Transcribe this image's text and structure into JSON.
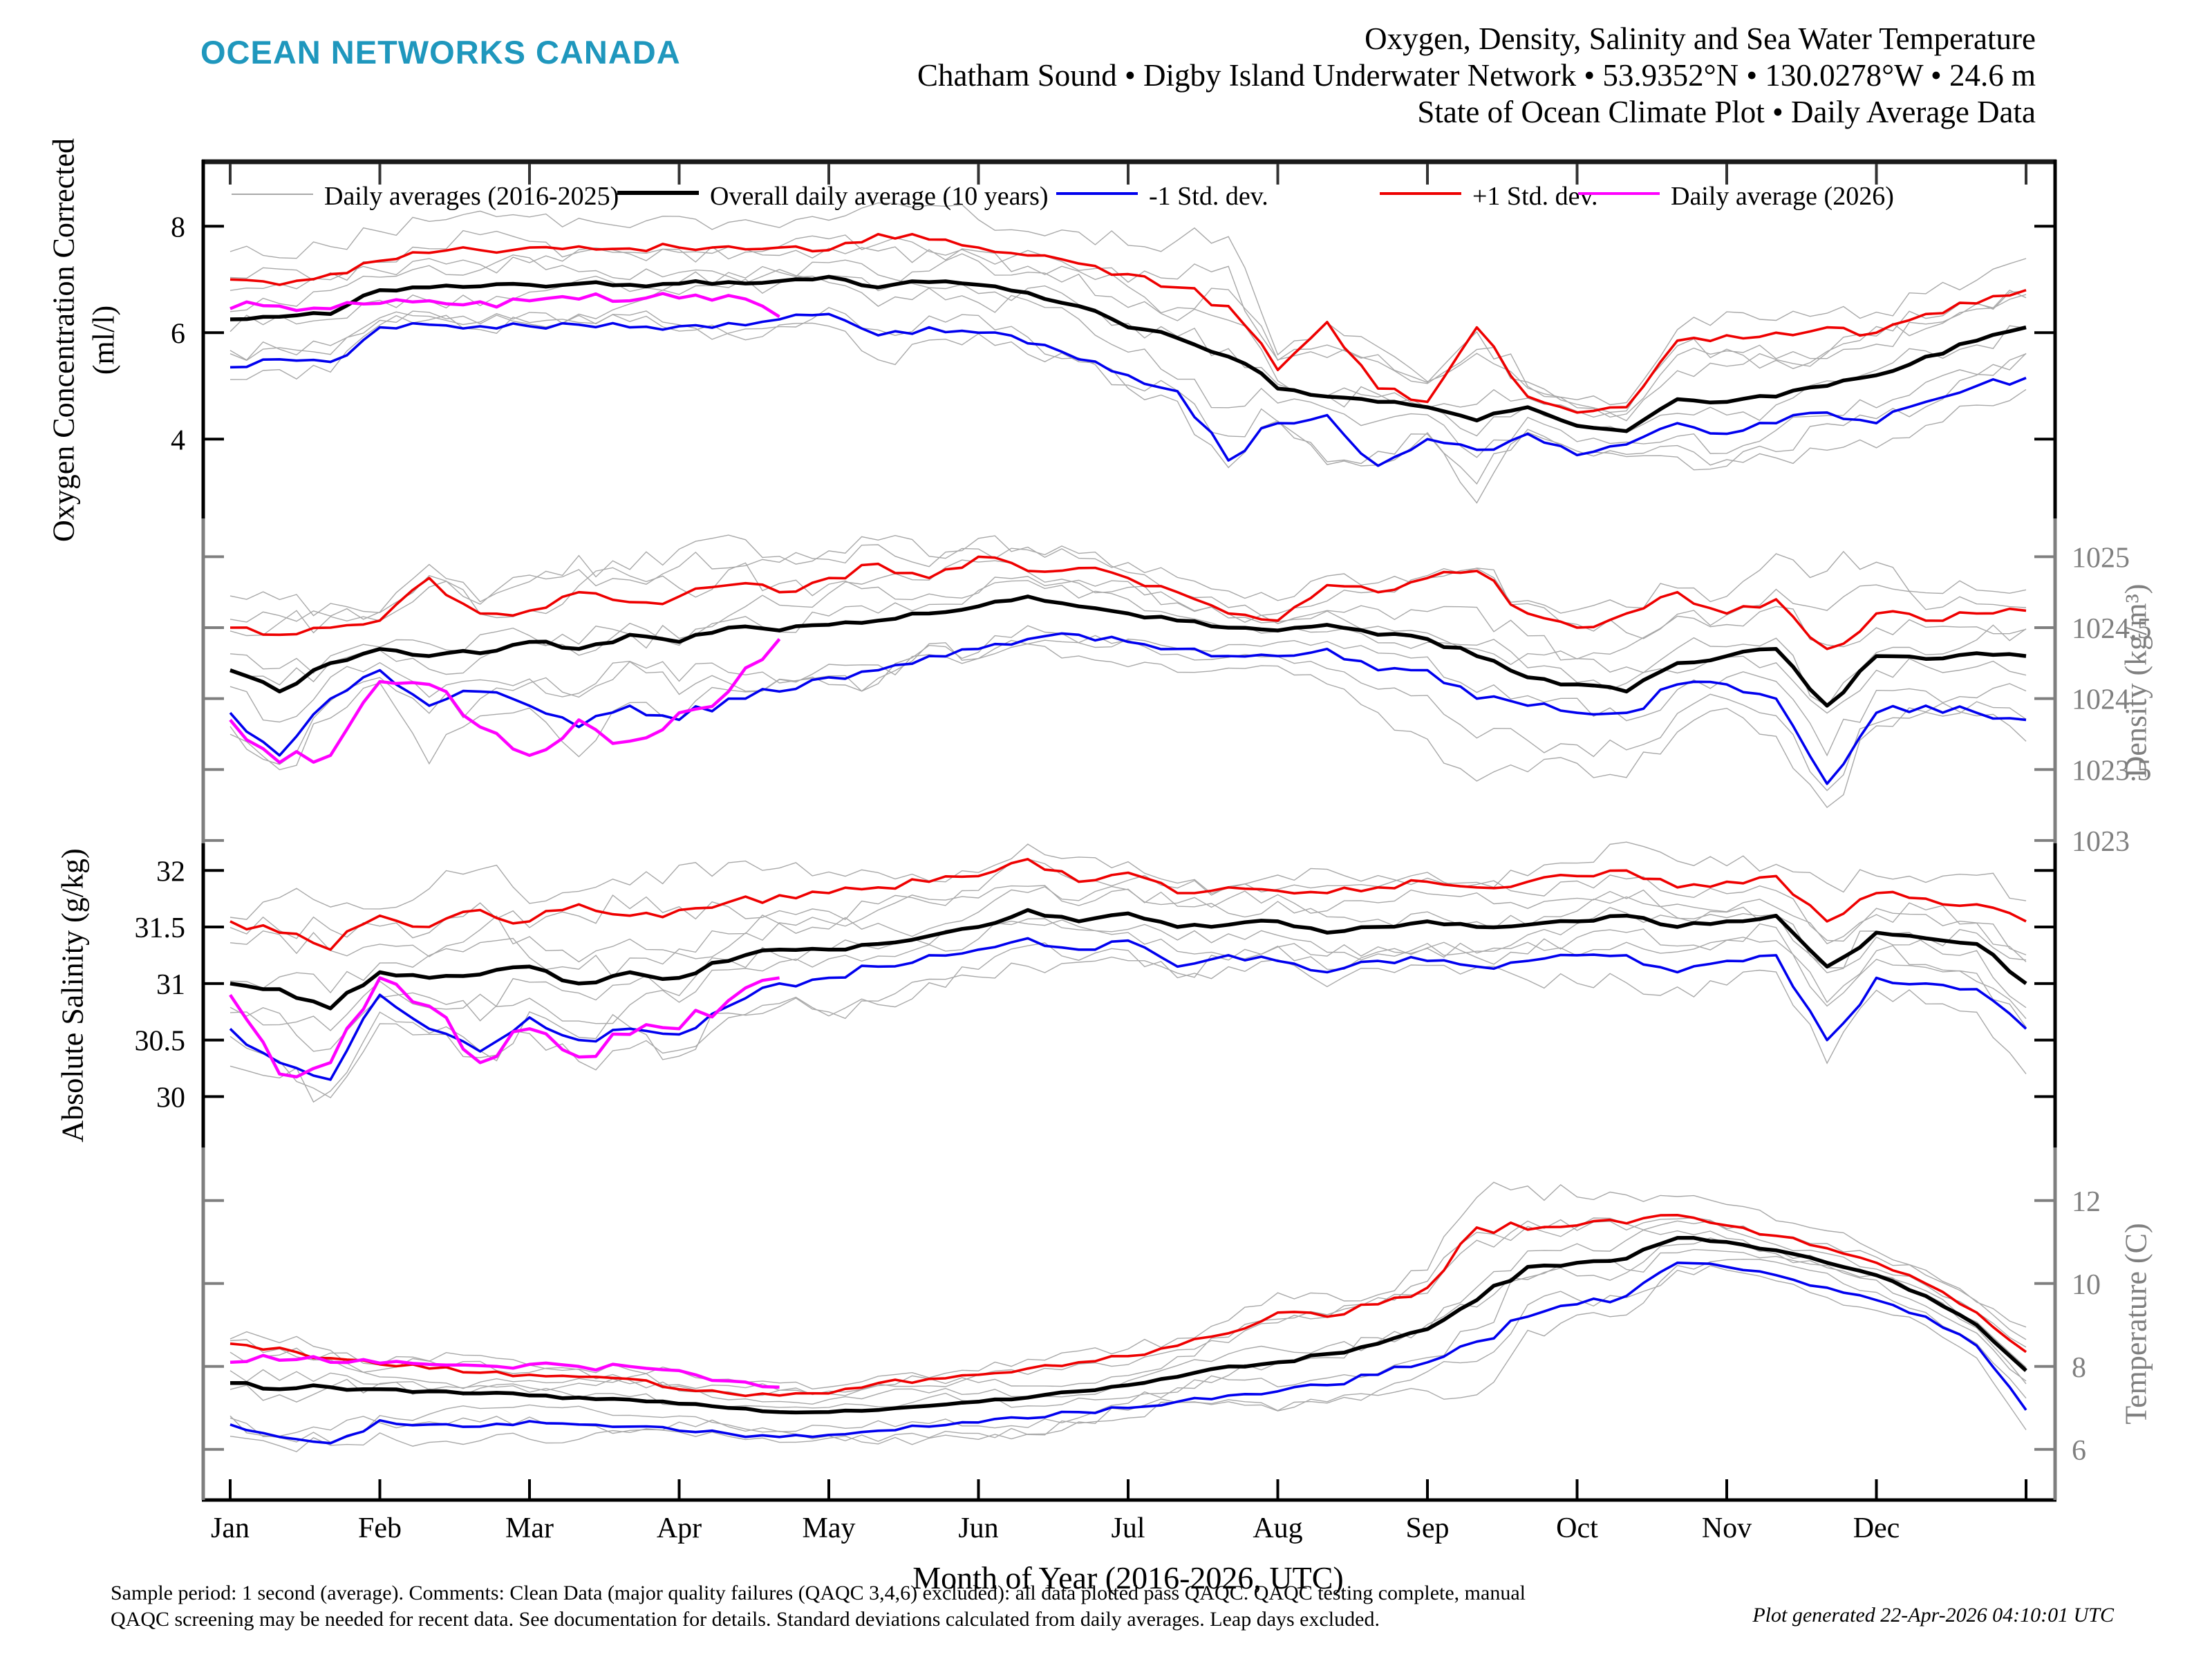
{
  "header": {
    "brand": "OCEAN NETWORKS CANADA",
    "brand_color": "#1f97bd",
    "title_lines": [
      "Oxygen, Density, Salinity and Sea Water Temperature",
      "Chatham Sound • Digby Island Underwater Network • 53.9352°N • 130.0278°W • 24.6 m",
      "State of Ocean Climate Plot • Daily Average Data"
    ]
  },
  "legend": [
    {
      "label": "Daily averages (2016-2025)",
      "color": "#a8a8a8",
      "thickness": 2
    },
    {
      "label": "Overall daily average (10 years)",
      "color": "#000000",
      "thickness": 6
    },
    {
      "label": "-1 Std. dev.",
      "color": "#0000ee",
      "thickness": 4
    },
    {
      "label": "+1 Std. dev.",
      "color": "#ee0000",
      "thickness": 4
    },
    {
      "label": "Daily average (2026)",
      "color": "#ff00ff",
      "thickness": 4
    }
  ],
  "x_axis": {
    "months": [
      "Jan",
      "Feb",
      "Mar",
      "Apr",
      "May",
      "Jun",
      "Jul",
      "Aug",
      "Sep",
      "Oct",
      "Nov",
      "Dec"
    ],
    "label": "Month of Year (2016-2026, UTC)"
  },
  "footer": {
    "line1": "Sample period: 1 second (average). Comments: Clean Data (major quality failures (QAQC 3,4,6) excluded): all data plotted pass QAQC. QAQC testing complete, manual",
    "line2": "QAQC screening may be needed for recent data. See documentation for details. Standard deviations calculated from daily averages. Leap days excluded.",
    "generated": "Plot generated 22-Apr-2026 04:10:01 UTC"
  },
  "colors": {
    "mean": "#000000",
    "plus_std": "#ee0000",
    "minus_std": "#0000ee",
    "current": "#ff00ff",
    "gray_year": "#a8a8a8",
    "axis_gray": "#7f7f7f"
  },
  "chart_data": {
    "type": "line",
    "x_unit": "month_of_year",
    "x": [
      0,
      0.33,
      0.67,
      1,
      1.33,
      1.67,
      2,
      2.33,
      2.67,
      3,
      3.33,
      3.67,
      4,
      4.33,
      4.67,
      5,
      5.33,
      5.67,
      6,
      6.33,
      6.67,
      7,
      7.33,
      7.67,
      8,
      8.33,
      8.67,
      9,
      9.33,
      9.67,
      10,
      10.33,
      10.67,
      11,
      11.33,
      11.67,
      12
    ],
    "current_x": [
      0,
      0.33,
      0.67,
      1,
      1.33,
      1.67,
      2,
      2.33,
      2.67,
      3,
      3.33,
      3.67
    ],
    "legend_series_note": "gray = individual daily-average year traces 2016-2025 (approximate); mean/std read from plot",
    "panels": [
      {
        "id": "oxygen",
        "axis_label": "Oxygen Concentration Corrected",
        "axis_label_line2": "(ml/l)",
        "axis_side": "left",
        "axis_color": "#000000",
        "ylim": [
          2.51,
          9.25
        ],
        "ticks": [
          8,
          6,
          4
        ],
        "tick_labels": [
          "8",
          "6",
          "4"
        ],
        "series": {
          "mean": [
            6.25,
            6.3,
            6.35,
            6.8,
            6.85,
            6.87,
            6.9,
            6.92,
            6.9,
            6.92,
            6.95,
            6.97,
            7.05,
            6.85,
            6.95,
            6.9,
            6.75,
            6.5,
            6.1,
            5.9,
            5.55,
            4.95,
            4.8,
            4.7,
            4.6,
            4.35,
            4.6,
            4.25,
            4.15,
            4.75,
            4.7,
            4.8,
            5.0,
            5.2,
            5.55,
            5.85,
            6.1
          ],
          "plus_std": [
            7.0,
            6.9,
            7.1,
            7.35,
            7.5,
            7.55,
            7.6,
            7.62,
            7.58,
            7.6,
            7.62,
            7.6,
            7.55,
            7.85,
            7.75,
            7.6,
            7.45,
            7.3,
            7.1,
            6.85,
            6.5,
            5.3,
            6.2,
            4.95,
            4.7,
            6.1,
            4.8,
            4.5,
            4.6,
            5.85,
            5.95,
            6.0,
            6.1,
            6.0,
            6.35,
            6.55,
            6.8
          ],
          "minus_std": [
            5.35,
            5.5,
            5.45,
            6.1,
            6.15,
            6.12,
            6.12,
            6.15,
            6.1,
            6.12,
            6.18,
            6.25,
            6.35,
            5.95,
            6.1,
            6.0,
            5.8,
            5.5,
            5.2,
            4.9,
            3.6,
            4.3,
            4.45,
            3.5,
            4.0,
            3.8,
            4.1,
            3.7,
            3.9,
            4.3,
            4.1,
            4.3,
            4.5,
            4.3,
            4.7,
            5.0,
            5.15
          ],
          "current": [
            6.45,
            6.5,
            6.45,
            6.55,
            6.6,
            6.58,
            6.6,
            6.63,
            6.6,
            6.65,
            6.7,
            6.3
          ]
        },
        "gray_years": {
          "count": 8,
          "seed": 11,
          "spread": 1.45
        }
      },
      {
        "id": "density",
        "axis_label": "Density (kg/m³)",
        "axis_side": "right",
        "axis_color": "#7f7f7f",
        "ylim": [
          1022.98,
          1025.27
        ],
        "ticks": [
          1025,
          1024.5,
          1024,
          1023.5,
          1023
        ],
        "tick_labels": [
          "1025",
          "1024.5",
          "1024",
          "1023.5",
          "1023"
        ],
        "series": {
          "mean": [
            1024.2,
            1024.05,
            1024.25,
            1024.35,
            1024.3,
            1024.32,
            1024.4,
            1024.35,
            1024.45,
            1024.4,
            1024.5,
            1024.48,
            1024.52,
            1024.55,
            1024.6,
            1024.65,
            1024.72,
            1024.65,
            1024.6,
            1024.55,
            1024.5,
            1024.48,
            1024.52,
            1024.45,
            1024.42,
            1024.3,
            1024.15,
            1024.1,
            1024.05,
            1024.25,
            1024.3,
            1024.35,
            1023.95,
            1024.3,
            1024.28,
            1024.32,
            1024.3
          ],
          "plus_std": [
            1024.5,
            1024.45,
            1024.5,
            1024.55,
            1024.85,
            1024.6,
            1024.62,
            1024.75,
            1024.68,
            1024.72,
            1024.8,
            1024.75,
            1024.85,
            1024.95,
            1024.85,
            1025.0,
            1024.9,
            1024.92,
            1024.85,
            1024.75,
            1024.6,
            1024.55,
            1024.8,
            1024.75,
            1024.85,
            1024.9,
            1024.6,
            1024.5,
            1024.6,
            1024.75,
            1024.6,
            1024.7,
            1024.35,
            1024.6,
            1024.55,
            1024.6,
            1024.62
          ],
          "minus_std": [
            1023.9,
            1023.6,
            1024.0,
            1024.2,
            1023.95,
            1024.05,
            1023.95,
            1023.8,
            1023.95,
            1023.85,
            1024.0,
            1024.05,
            1024.15,
            1024.2,
            1024.3,
            1024.35,
            1024.42,
            1024.45,
            1024.4,
            1024.35,
            1024.3,
            1024.3,
            1024.35,
            1024.2,
            1024.2,
            1024.0,
            1023.95,
            1023.9,
            1023.9,
            1024.1,
            1024.1,
            1024.0,
            1023.4,
            1023.9,
            1023.95,
            1023.9,
            1023.85
          ],
          "current": [
            1023.85,
            1023.55,
            1023.6,
            1024.12,
            1024.1,
            1023.8,
            1023.6,
            1023.85,
            1023.7,
            1023.9,
            1024.05,
            1024.42
          ]
        },
        "gray_years": {
          "count": 8,
          "seed": 23,
          "spread": 1.45
        }
      },
      {
        "id": "salinity",
        "axis_label": "Absolute Salinity (g/kg)",
        "axis_side": "left",
        "axis_color": "#000000",
        "ylim": [
          29.55,
          32.24
        ],
        "ticks": [
          32,
          31.5,
          31,
          30.5,
          30
        ],
        "tick_labels": [
          "32",
          "31.5",
          "31",
          "30.5",
          "30"
        ],
        "series": {
          "mean": [
            31.0,
            30.95,
            30.78,
            31.1,
            31.05,
            31.08,
            31.15,
            31.0,
            31.1,
            31.05,
            31.2,
            31.3,
            31.3,
            31.35,
            31.42,
            31.5,
            31.65,
            31.55,
            31.62,
            31.5,
            31.52,
            31.55,
            31.45,
            31.5,
            31.55,
            31.5,
            31.52,
            31.55,
            31.6,
            31.5,
            31.55,
            31.6,
            31.15,
            31.45,
            31.4,
            31.35,
            31.0
          ],
          "plus_std": [
            31.55,
            31.45,
            31.3,
            31.6,
            31.5,
            31.65,
            31.55,
            31.7,
            31.6,
            31.65,
            31.72,
            31.78,
            31.8,
            31.85,
            31.9,
            31.95,
            32.1,
            31.9,
            31.98,
            31.8,
            31.85,
            31.82,
            31.8,
            31.85,
            31.9,
            31.85,
            31.9,
            31.95,
            32.0,
            31.85,
            31.9,
            31.95,
            31.55,
            31.8,
            31.75,
            31.7,
            31.55
          ],
          "minus_std": [
            30.6,
            30.3,
            30.15,
            30.9,
            30.6,
            30.4,
            30.7,
            30.5,
            30.6,
            30.55,
            30.8,
            31.0,
            31.05,
            31.15,
            31.25,
            31.3,
            31.4,
            31.3,
            31.38,
            31.15,
            31.25,
            31.2,
            31.1,
            31.2,
            31.2,
            31.15,
            31.2,
            31.25,
            31.25,
            31.1,
            31.2,
            31.25,
            30.5,
            31.05,
            31.0,
            30.95,
            30.6
          ],
          "current": [
            30.9,
            30.2,
            30.3,
            31.05,
            30.8,
            30.3,
            30.6,
            30.35,
            30.55,
            30.6,
            30.85,
            31.05
          ]
        },
        "gray_years": {
          "count": 8,
          "seed": 37,
          "spread": 1.4
        }
      },
      {
        "id": "temperature",
        "axis_label": "Temperature (C)",
        "axis_side": "right",
        "axis_color": "#7f7f7f",
        "ylim": [
          4.78,
          13.28
        ],
        "ticks": [
          12,
          10,
          8,
          6
        ],
        "tick_labels": [
          "12",
          "10",
          "8",
          "6"
        ],
        "series": {
          "mean": [
            7.6,
            7.45,
            7.5,
            7.45,
            7.4,
            7.35,
            7.3,
            7.25,
            7.2,
            7.1,
            7.0,
            6.9,
            6.9,
            6.95,
            7.05,
            7.15,
            7.25,
            7.4,
            7.55,
            7.75,
            8.0,
            8.1,
            8.3,
            8.55,
            8.9,
            9.6,
            10.4,
            10.5,
            10.6,
            11.1,
            11.0,
            10.8,
            10.5,
            10.2,
            9.7,
            9.0,
            7.9
          ],
          "plus_std": [
            8.55,
            8.45,
            8.2,
            8.05,
            7.95,
            7.85,
            7.8,
            7.75,
            7.7,
            7.45,
            7.35,
            7.3,
            7.35,
            7.6,
            7.7,
            7.8,
            7.95,
            8.1,
            8.25,
            8.5,
            8.8,
            9.3,
            9.2,
            9.5,
            9.9,
            11.35,
            11.3,
            11.4,
            11.45,
            11.65,
            11.4,
            11.15,
            10.85,
            10.5,
            10.0,
            9.3,
            8.35
          ],
          "minus_std": [
            6.6,
            6.3,
            6.15,
            6.7,
            6.6,
            6.55,
            6.68,
            6.6,
            6.55,
            6.45,
            6.38,
            6.3,
            6.35,
            6.45,
            6.55,
            6.65,
            6.75,
            6.9,
            7.0,
            7.15,
            7.3,
            7.4,
            7.55,
            7.8,
            8.1,
            8.6,
            9.2,
            9.5,
            9.7,
            10.5,
            10.4,
            10.2,
            9.9,
            9.6,
            9.2,
            8.5,
            6.95
          ],
          "current": [
            8.1,
            8.15,
            8.1,
            8.08,
            8.05,
            8.02,
            8.05,
            8.0,
            8.0,
            7.9,
            7.65,
            7.5
          ]
        },
        "gray_years": {
          "count": 8,
          "seed": 51,
          "spread": 1.4
        }
      }
    ]
  }
}
